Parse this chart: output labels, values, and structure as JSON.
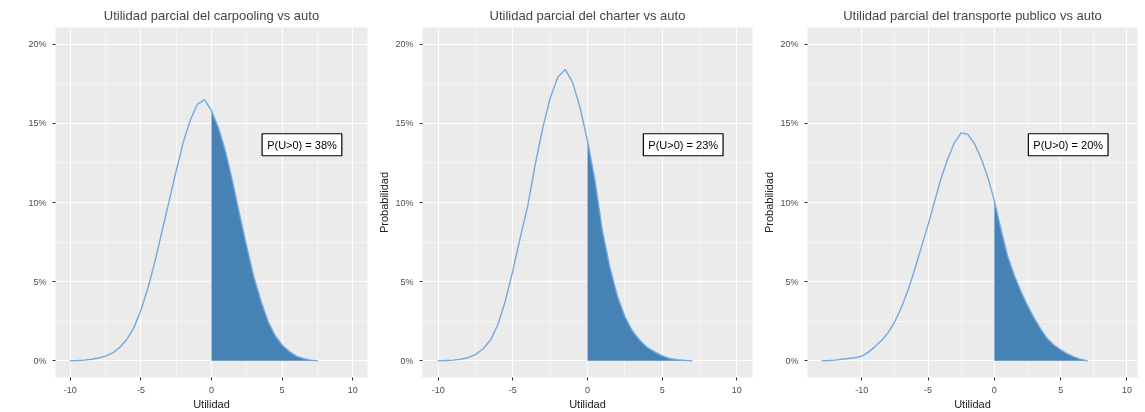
{
  "chart_data": [
    {
      "type": "line",
      "title": "Utilidad parcial del carpooling vs auto",
      "xlabel": "Utilidad",
      "xlim": [
        -11.05,
        11.05
      ],
      "xticks": [
        -10,
        -5,
        0,
        5,
        10
      ],
      "ylim": [
        -1.05,
        21.05
      ],
      "yticks": [
        {
          "value": 0,
          "label": "0%"
        },
        {
          "value": 5,
          "label": "5%"
        },
        {
          "value": 10,
          "label": "10%"
        },
        {
          "value": 15,
          "label": "15%"
        },
        {
          "value": 20,
          "label": "20%"
        }
      ],
      "grid": true,
      "annotations": [
        "P(U>0) = 38%"
      ],
      "series": [
        {
          "color": "#74a9e0",
          "x": [
            -10,
            -9.5,
            -9,
            -8.5,
            -8,
            -7.5,
            -7,
            -6.5,
            -6,
            -5.5,
            -5,
            -4.5,
            -4,
            -3.5,
            -3,
            -2.5,
            -2,
            -1.5,
            -1,
            -0.5,
            0,
            0.5,
            1,
            1.5,
            2,
            2.5,
            3,
            3.5,
            4,
            4.5,
            5,
            5.5,
            6,
            6.5,
            7,
            7.5
          ],
          "values": [
            0,
            0.02,
            0.05,
            0.1,
            0.18,
            0.3,
            0.5,
            0.85,
            1.35,
            2.1,
            3.2,
            4.6,
            6.3,
            8.2,
            10.1,
            12.0,
            13.8,
            15.2,
            16.2,
            16.5,
            15.8,
            14.7,
            13.2,
            11.3,
            9.2,
            7.2,
            5.3,
            3.8,
            2.5,
            1.6,
            1.0,
            0.6,
            0.3,
            0.15,
            0.05,
            0
          ]
        },
        {
          "type": "area",
          "color": "#4682b4",
          "x": [
            0,
            0.5,
            1,
            1.5,
            2,
            2.5,
            3,
            3.5,
            4,
            4.5,
            5,
            5.5,
            6,
            6.5,
            7,
            7.5
          ],
          "values": [
            15.8,
            14.7,
            13.2,
            11.3,
            9.2,
            7.2,
            5.3,
            3.8,
            2.5,
            1.6,
            1.0,
            0.6,
            0.3,
            0.15,
            0.05,
            0
          ]
        }
      ]
    },
    {
      "type": "line",
      "title": "Utilidad parcial del charter vs auto",
      "xlabel": "Utilidad",
      "ylabel": "Probabilidad",
      "xlim": [
        -11.05,
        11.05
      ],
      "xticks": [
        -10,
        -5,
        0,
        5,
        10
      ],
      "ylim": [
        -1.05,
        21.05
      ],
      "yticks": [
        {
          "value": 0,
          "label": "0%"
        },
        {
          "value": 5,
          "label": "5%"
        },
        {
          "value": 10,
          "label": "10%"
        },
        {
          "value": 15,
          "label": "15%"
        },
        {
          "value": 20,
          "label": "20%"
        }
      ],
      "grid": true,
      "annotations": [
        "P(U>0) = 23%"
      ],
      "series": [
        {
          "color": "#74a9e0",
          "x": [
            -10,
            -9.5,
            -9,
            -8.5,
            -8,
            -7.5,
            -7,
            -6.5,
            -6,
            -5.5,
            -5,
            -4.5,
            -4,
            -3.5,
            -3,
            -2.5,
            -2,
            -1.5,
            -1,
            -0.5,
            0,
            0.5,
            1,
            1.5,
            2,
            2.5,
            3,
            3.5,
            4,
            4.5,
            5,
            5.5,
            6,
            6.5,
            7
          ],
          "values": [
            0,
            0.02,
            0.05,
            0.1,
            0.2,
            0.4,
            0.75,
            1.3,
            2.3,
            3.8,
            5.7,
            7.8,
            9.8,
            12.4,
            14.7,
            16.6,
            17.9,
            18.4,
            17.6,
            16.0,
            13.9,
            11.4,
            8.2,
            5.9,
            4.1,
            2.8,
            1.9,
            1.3,
            0.85,
            0.57,
            0.32,
            0.15,
            0.07,
            0.03,
            0
          ]
        },
        {
          "type": "area",
          "color": "#4682b4",
          "x": [
            0,
            0.5,
            1,
            1.5,
            2,
            2.5,
            3,
            3.5,
            4,
            4.5,
            5,
            5.5,
            6,
            6.5,
            7
          ],
          "values": [
            13.9,
            11.4,
            8.2,
            5.9,
            4.1,
            2.8,
            1.9,
            1.3,
            0.85,
            0.57,
            0.32,
            0.15,
            0.07,
            0.03,
            0
          ]
        }
      ]
    },
    {
      "type": "line",
      "title": "Utilidad parcial del transporte publico vs auto",
      "xlabel": "Utilidad",
      "ylabel": "Probabilidad",
      "xlim": [
        -14.1,
        10.8
      ],
      "xticks": [
        -10,
        -5,
        0,
        5,
        10
      ],
      "ylim": [
        -1.05,
        21.05
      ],
      "yticks": [
        {
          "value": 0,
          "label": "0%"
        },
        {
          "value": 5,
          "label": "5%"
        },
        {
          "value": 10,
          "label": "10%"
        },
        {
          "value": 15,
          "label": "15%"
        },
        {
          "value": 20,
          "label": "20%"
        }
      ],
      "grid": true,
      "annotations": [
        "P(U>0) = 20%"
      ],
      "series": [
        {
          "color": "#74a9e0",
          "x": [
            -13,
            -12.5,
            -12,
            -11.5,
            -11,
            -10.5,
            -10,
            -9.5,
            -9,
            -8.5,
            -8,
            -7.5,
            -7,
            -6.5,
            -6,
            -5.5,
            -5,
            -4.5,
            -4,
            -3.5,
            -3,
            -2.5,
            -2,
            -1.5,
            -1,
            -0.5,
            0,
            0.5,
            1,
            1.5,
            2,
            2.5,
            3,
            3.5,
            4,
            4.5,
            5,
            5.5,
            6,
            6.5,
            7
          ],
          "values": [
            0,
            0.02,
            0.05,
            0.1,
            0.15,
            0.2,
            0.3,
            0.55,
            0.9,
            1.3,
            1.8,
            2.5,
            3.4,
            4.5,
            5.8,
            7.2,
            8.6,
            10.1,
            11.6,
            12.8,
            13.8,
            14.4,
            14.3,
            13.7,
            12.8,
            11.6,
            10.1,
            8.3,
            6.6,
            5.4,
            4.4,
            3.5,
            2.7,
            2.0,
            1.4,
            1.0,
            0.7,
            0.45,
            0.25,
            0.1,
            0
          ]
        },
        {
          "type": "area",
          "color": "#4682b4",
          "x": [
            0,
            0.5,
            1,
            1.5,
            2,
            2.5,
            3,
            3.5,
            4,
            4.5,
            5,
            5.5,
            6,
            6.5,
            7
          ],
          "values": [
            10.1,
            8.3,
            6.6,
            5.4,
            4.4,
            3.5,
            2.7,
            2.0,
            1.4,
            1.0,
            0.7,
            0.45,
            0.25,
            0.1,
            0
          ]
        }
      ]
    }
  ]
}
